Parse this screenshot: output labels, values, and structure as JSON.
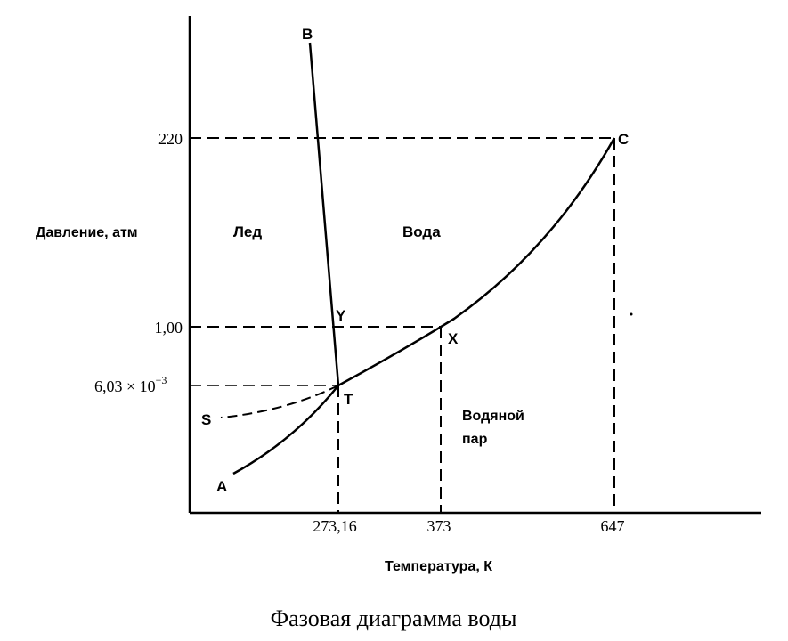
{
  "caption": "Фазовая диаграмма воды",
  "axes": {
    "y_label": "Давление, атм",
    "x_label": "Температура, К"
  },
  "ticks": {
    "y": [
      {
        "id": "220",
        "text": "220"
      },
      {
        "id": "1",
        "text": "1,00"
      },
      {
        "id": "triple",
        "text": "6,03 × 10",
        "sup": "−3"
      }
    ],
    "x": [
      {
        "id": "273",
        "text": "273,16"
      },
      {
        "id": "373",
        "text": "373"
      },
      {
        "id": "647",
        "text": "647"
      }
    ]
  },
  "regions": {
    "ice": "Лед",
    "water": "Вода",
    "vapor_line1": "Водяной",
    "vapor_line2": "пар"
  },
  "points": {
    "A": "A",
    "B": "B",
    "C": "C",
    "S": "S",
    "T": "T",
    "X": "X",
    "Y": "Y"
  }
}
